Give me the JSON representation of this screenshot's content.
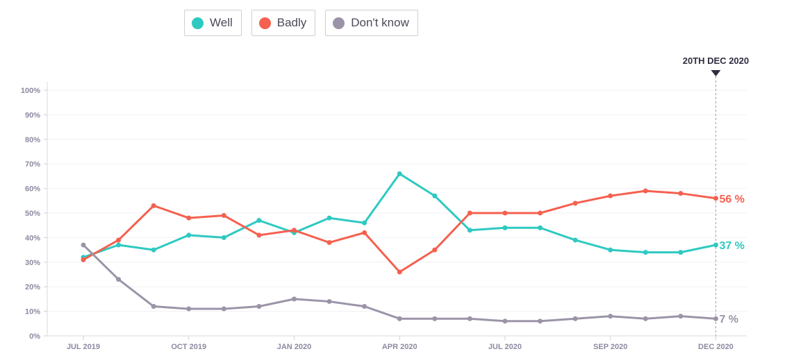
{
  "legend": [
    {
      "label": "Well",
      "color": "#2ec9c1"
    },
    {
      "label": "Badly",
      "color": "#f5604f"
    },
    {
      "label": "Don't know",
      "color": "#9b94a8"
    }
  ],
  "marker": {
    "label": "20TH DEC 2020"
  },
  "chart_data": {
    "type": "line",
    "ylim": [
      0,
      100
    ],
    "y_ticks": [
      "0%",
      "10%",
      "20%",
      "30%",
      "40%",
      "50%",
      "60%",
      "70%",
      "80%",
      "90%",
      "100%"
    ],
    "x_tick_labels": [
      "JUL 2019",
      "OCT 2019",
      "JAN 2020",
      "APR 2020",
      "JUL 2020",
      "SEP 2020",
      "DEC 2020"
    ],
    "x_tick_index": [
      0,
      3,
      6,
      9,
      12,
      15,
      18
    ],
    "grid": true,
    "legend_position": "top-left",
    "series": [
      {
        "name": "Well",
        "color": "#2ec9c1",
        "end_label": "37 %",
        "values": [
          32,
          37,
          35,
          41,
          40,
          47,
          42,
          48,
          46,
          66,
          57,
          43,
          44,
          44,
          39,
          35,
          34,
          34,
          37
        ]
      },
      {
        "name": "Badly",
        "color": "#f5604f",
        "end_label": "56 %",
        "values": [
          31,
          39,
          53,
          48,
          49,
          41,
          43,
          38,
          42,
          26,
          35,
          50,
          50,
          50,
          54,
          57,
          59,
          58,
          56
        ]
      },
      {
        "name": "Don't know",
        "color": "#9b94a8",
        "end_label": "7 %",
        "values": [
          37,
          23,
          12,
          11,
          11,
          12,
          15,
          14,
          12,
          7,
          7,
          7,
          6,
          6,
          7,
          8,
          7,
          8,
          7
        ]
      }
    ]
  }
}
